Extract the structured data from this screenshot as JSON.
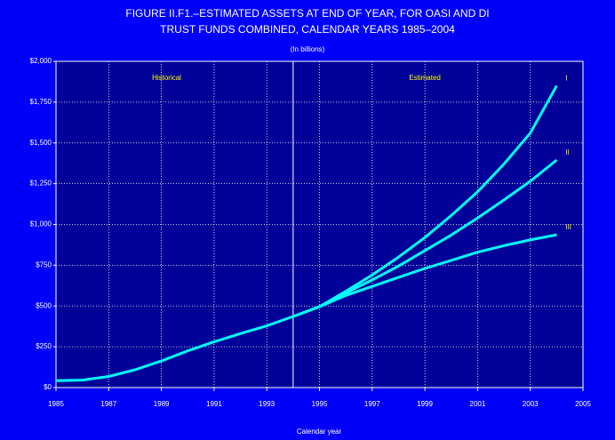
{
  "chart_data": {
    "type": "line",
    "title": [
      "FIGURE II.F1.–ESTIMATED  ASSETS AT END OF  YEAR, FOR  OASI AND DI",
      "TRUST  FUNDS COMBINED, CALENDAR YEARS 1985–2004"
    ],
    "subtitle": "(In billions)",
    "x_label": "Calendar year",
    "annotations": [
      {
        "text": "Historical",
        "x": 1989.2
      },
      {
        "text": "Estimated",
        "x": 1999.0
      }
    ],
    "divider": 1994,
    "x": [
      1985,
      1986,
      1987,
      1988,
      1989,
      1990,
      1991,
      1992,
      1993,
      1994,
      1995,
      1996,
      1997,
      1998,
      1999,
      2000,
      2001,
      2002,
      2003,
      2004
    ],
    "series": [
      {
        "color": "#00ffff",
        "values": [
          42,
          46,
          68,
          109,
          163,
          225,
          280,
          331,
          378,
          436,
          null,
          null,
          null,
          null,
          null,
          null,
          null,
          null,
          null,
          null
        ]
      },
      {
        "name": "I",
        "color": "#00ffff",
        "values": [
          null,
          null,
          null,
          null,
          null,
          null,
          null,
          null,
          null,
          436,
          496,
          590,
          690,
          800,
          920,
          1055,
          1200,
          1370,
          1560,
          1850
        ]
      },
      {
        "name": "II",
        "color": "#00ffff",
        "values": [
          null,
          null,
          null,
          null,
          null,
          null,
          null,
          null,
          null,
          436,
          496,
          580,
          660,
          745,
          840,
          935,
          1040,
          1150,
          1265,
          1395
        ]
      },
      {
        "name": "III",
        "color": "#00ffff",
        "values": [
          null,
          null,
          null,
          null,
          null,
          null,
          null,
          null,
          null,
          436,
          496,
          565,
          620,
          675,
          730,
          780,
          830,
          870,
          905,
          937
        ]
      }
    ],
    "xlim": [
      1985,
      2005
    ],
    "xticks": [
      1985,
      1987,
      1989,
      1991,
      1993,
      1995,
      1997,
      1999,
      2001,
      2003,
      2005
    ],
    "ylim": [
      0,
      2000
    ],
    "yticks": [
      {
        "value": 0,
        "label": "$0"
      },
      {
        "value": 250,
        "label": "$250"
      },
      {
        "value": 500,
        "label": "$500"
      },
      {
        "value": 750,
        "label": "$750"
      },
      {
        "value": 1000,
        "label": "$1,000"
      },
      {
        "value": 1250,
        "label": "$1,250"
      },
      {
        "value": 1500,
        "label": "$1,500"
      },
      {
        "value": 1750,
        "label": "$1,750"
      },
      {
        "value": 2000,
        "label": "$2,000"
      }
    ],
    "grid": true
  }
}
